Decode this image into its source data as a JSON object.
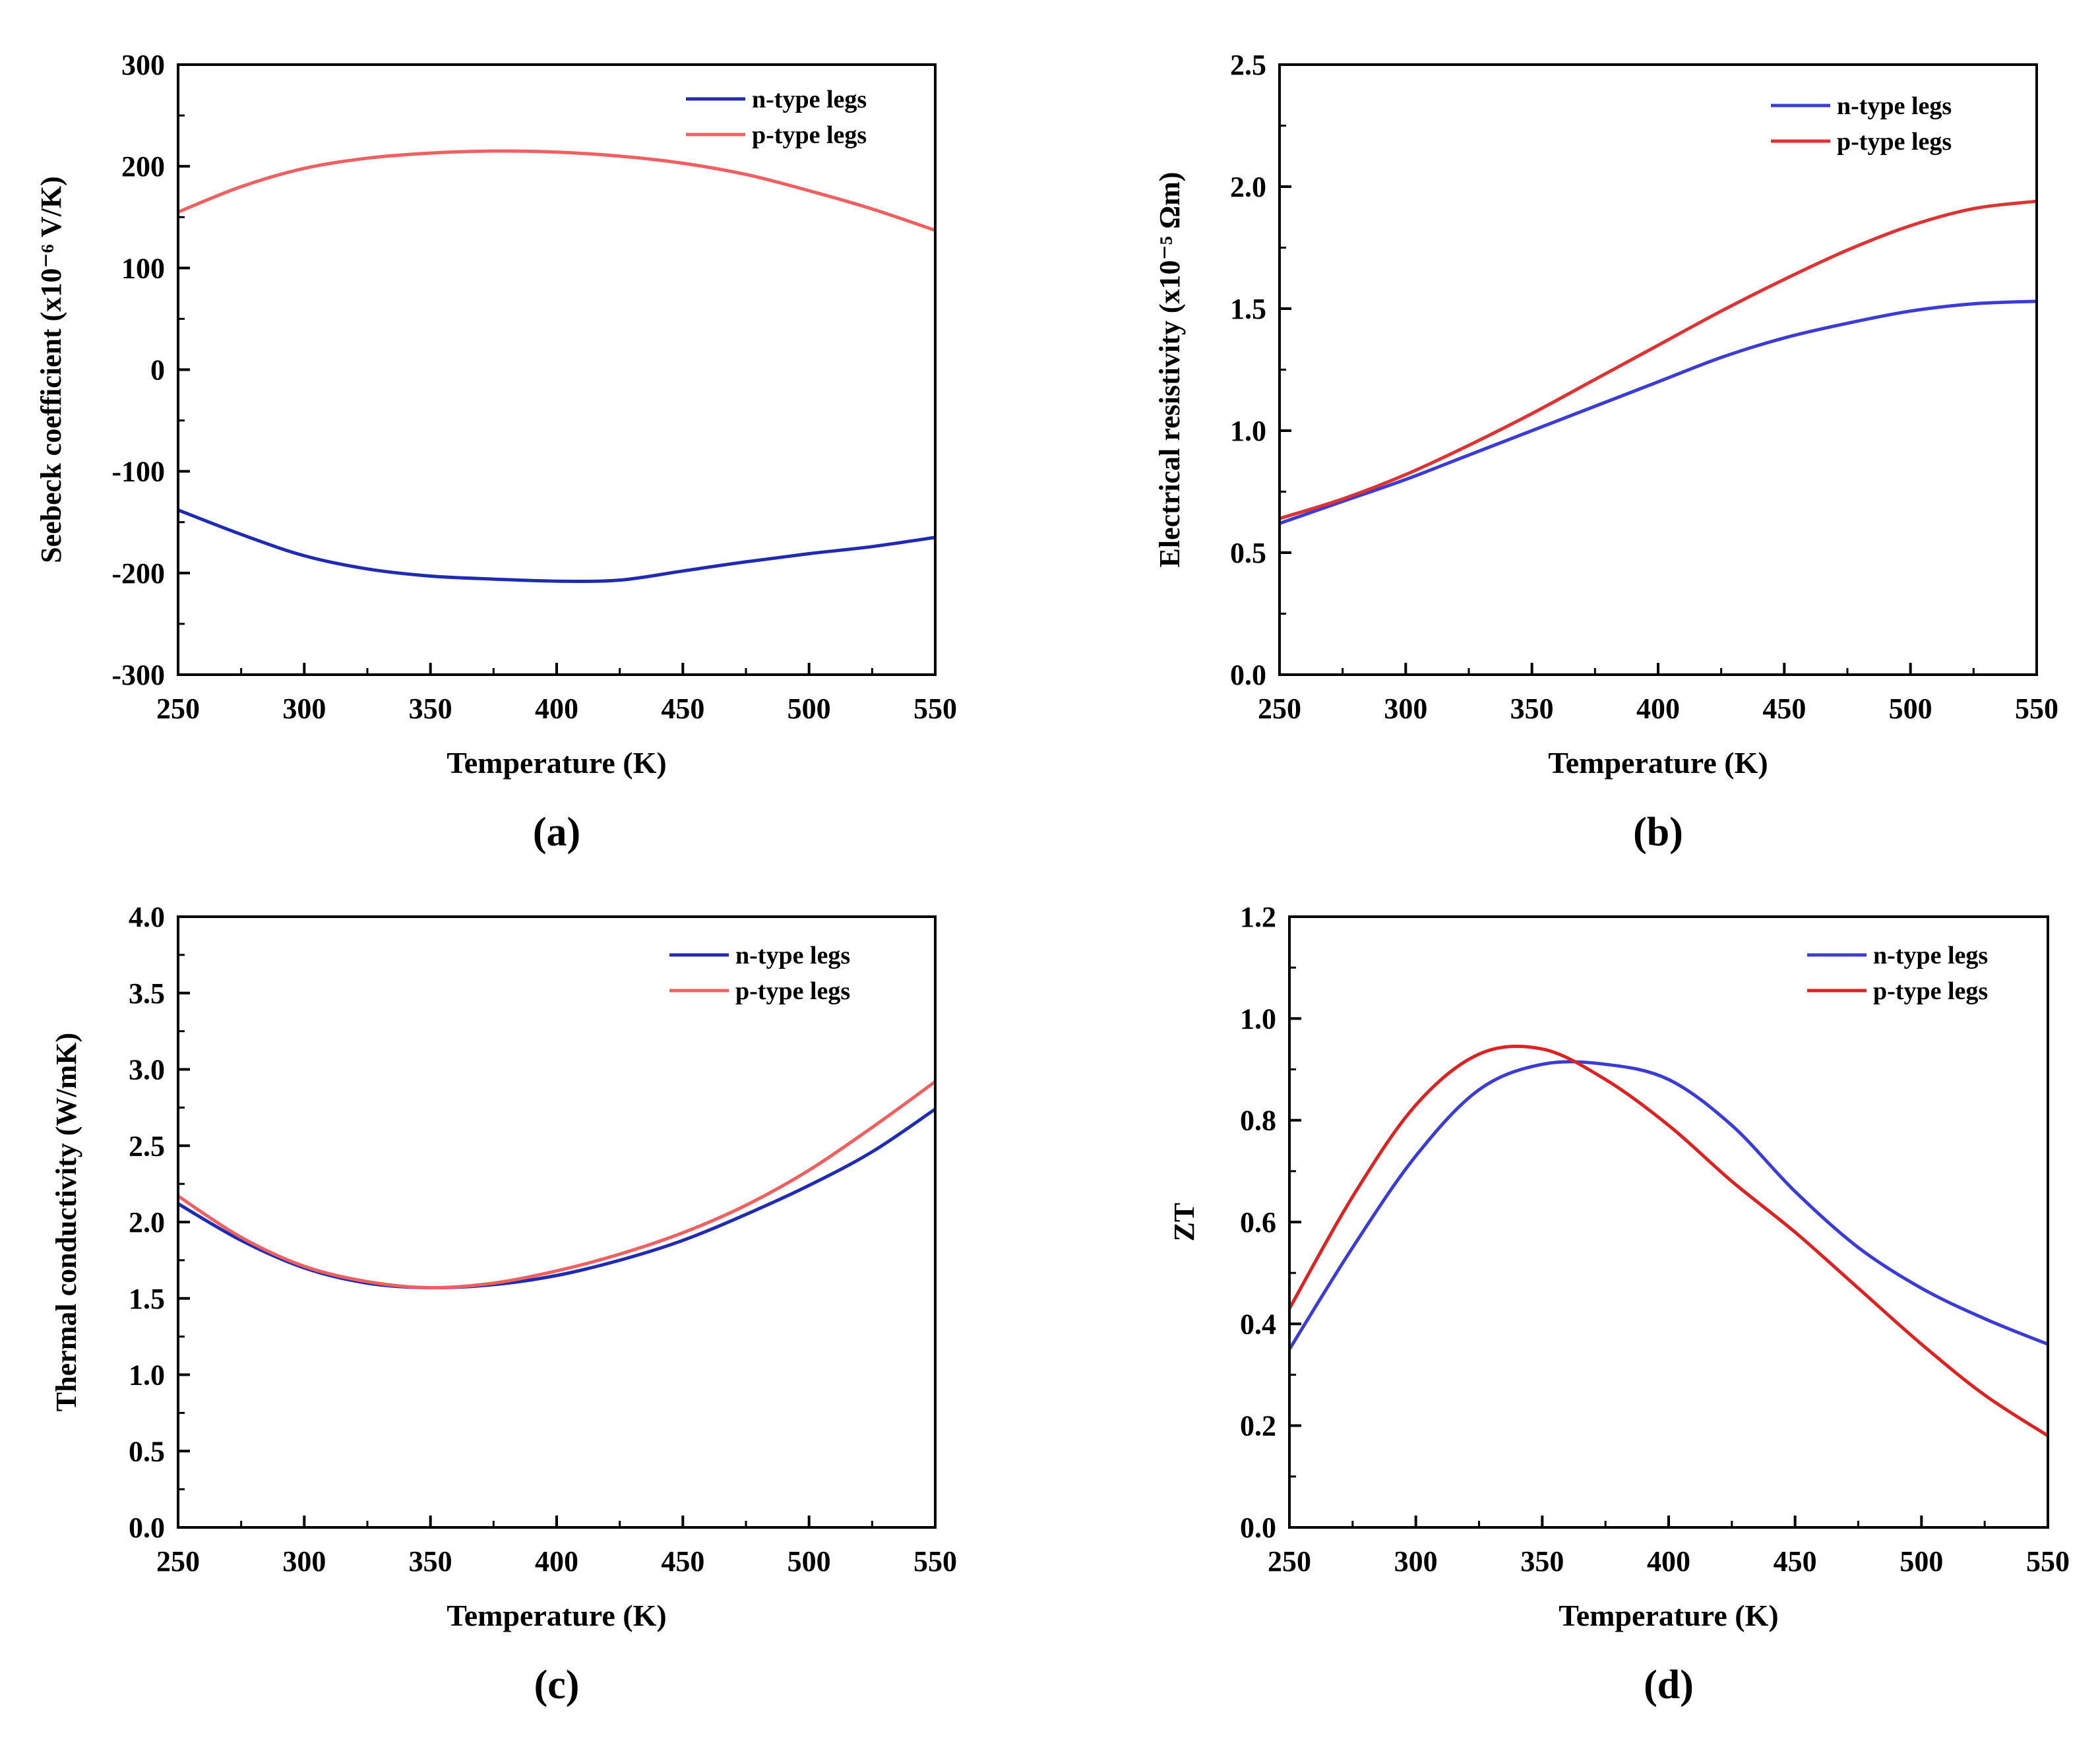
{
  "figure": {
    "panels_label": "Four-panel thermoelectric properties figure"
  },
  "chart_data": [
    {
      "id": "a",
      "type": "line",
      "panel_label": "(a)",
      "xlabel": "Temperature (K)",
      "ylabel": "Seebeck coefficient (x10⁻⁶ V/K)",
      "xlim": [
        250,
        550
      ],
      "ylim": [
        -300,
        300
      ],
      "xticks": [
        250,
        300,
        350,
        400,
        450,
        500,
        550
      ],
      "yticks": [
        -300,
        -200,
        -100,
        0,
        100,
        200,
        300
      ],
      "ytick_labels": [
        "-300",
        "-200",
        "-100",
        "0",
        "100",
        "200",
        "300"
      ],
      "legend_position": "top-right",
      "series": [
        {
          "name": "n-type legs",
          "color": "#1f2bb3",
          "x": [
            250,
            275,
            300,
            325,
            350,
            375,
            400,
            425,
            450,
            475,
            500,
            525,
            550
          ],
          "y": [
            -138,
            -162,
            -183,
            -196,
            -203,
            -206,
            -208,
            -207,
            -198,
            -189,
            -181,
            -174,
            -165
          ]
        },
        {
          "name": "p-type legs",
          "color": "#f06060",
          "x": [
            250,
            275,
            300,
            325,
            350,
            375,
            400,
            425,
            450,
            475,
            500,
            525,
            550
          ],
          "y": [
            155,
            180,
            198,
            208,
            213,
            215,
            214,
            210,
            203,
            192,
            176,
            158,
            137
          ]
        }
      ]
    },
    {
      "id": "b",
      "type": "line",
      "panel_label": "(b)",
      "xlabel": "Temperature (K)",
      "ylabel": "Electrical resistivity (x10⁻⁵ Ωm)",
      "xlim": [
        250,
        550
      ],
      "ylim": [
        0,
        2.5
      ],
      "xticks": [
        250,
        300,
        350,
        400,
        450,
        500,
        550
      ],
      "yticks": [
        0,
        0.5,
        1.0,
        1.5,
        2.0,
        2.5
      ],
      "ytick_labels": [
        "0.0",
        "0.5",
        "1.0",
        "1.5",
        "2.0",
        "2.5"
      ],
      "legend_position": "top-right",
      "series": [
        {
          "name": "n-type legs",
          "color": "#3b3bd6",
          "x": [
            250,
            275,
            300,
            325,
            350,
            375,
            400,
            425,
            450,
            475,
            500,
            525,
            550
          ],
          "y": [
            0.62,
            0.71,
            0.8,
            0.9,
            1.0,
            1.1,
            1.2,
            1.3,
            1.38,
            1.44,
            1.49,
            1.52,
            1.53
          ]
        },
        {
          "name": "p-type legs",
          "color": "#dd3333",
          "x": [
            250,
            275,
            300,
            325,
            350,
            375,
            400,
            425,
            450,
            475,
            500,
            525,
            550
          ],
          "y": [
            0.64,
            0.72,
            0.82,
            0.94,
            1.07,
            1.21,
            1.35,
            1.49,
            1.62,
            1.74,
            1.84,
            1.91,
            1.94
          ]
        }
      ]
    },
    {
      "id": "c",
      "type": "line",
      "panel_label": "(c)",
      "xlabel": "Temperature (K)",
      "ylabel": "Thermal conductivity (W/mK)",
      "xlim": [
        250,
        550
      ],
      "ylim": [
        0,
        4.0
      ],
      "xticks": [
        250,
        300,
        350,
        400,
        450,
        500,
        550
      ],
      "yticks": [
        0,
        0.5,
        1.0,
        1.5,
        2.0,
        2.5,
        3.0,
        3.5,
        4.0
      ],
      "ytick_labels": [
        "0.0",
        "0.5",
        "1.0",
        "1.5",
        "2.0",
        "2.5",
        "3.0",
        "3.5",
        "4.0"
      ],
      "legend_position": "top-right",
      "series": [
        {
          "name": "n-type legs",
          "color": "#1f2bb3",
          "x": [
            250,
            275,
            300,
            325,
            350,
            375,
            400,
            425,
            450,
            475,
            500,
            525,
            550
          ],
          "y": [
            2.12,
            1.88,
            1.7,
            1.6,
            1.57,
            1.59,
            1.65,
            1.75,
            1.88,
            2.05,
            2.24,
            2.46,
            2.74
          ]
        },
        {
          "name": "p-type legs",
          "color": "#f06060",
          "x": [
            250,
            275,
            300,
            325,
            350,
            375,
            400,
            425,
            450,
            475,
            500,
            525,
            550
          ],
          "y": [
            2.17,
            1.9,
            1.71,
            1.61,
            1.57,
            1.6,
            1.68,
            1.79,
            1.93,
            2.11,
            2.34,
            2.62,
            2.92
          ]
        }
      ]
    },
    {
      "id": "d",
      "type": "line",
      "panel_label": "(d)",
      "xlabel": "Temperature (K)",
      "ylabel": "ZT",
      "xlim": [
        250,
        550
      ],
      "ylim": [
        0,
        1.2
      ],
      "xticks": [
        250,
        300,
        350,
        400,
        450,
        500,
        550
      ],
      "yticks": [
        0,
        0.2,
        0.4,
        0.6,
        0.8,
        1.0,
        1.2
      ],
      "ytick_labels": [
        "0.0",
        "0.2",
        "0.4",
        "0.6",
        "0.8",
        "1.0",
        "1.2"
      ],
      "legend_position": "top-right",
      "series": [
        {
          "name": "n-type legs",
          "color": "#3b3bd6",
          "x": [
            250,
            275,
            300,
            325,
            350,
            375,
            400,
            425,
            450,
            475,
            500,
            525,
            550
          ],
          "y": [
            0.35,
            0.55,
            0.73,
            0.86,
            0.91,
            0.91,
            0.88,
            0.79,
            0.66,
            0.55,
            0.47,
            0.41,
            0.36
          ]
        },
        {
          "name": "p-type legs",
          "color": "#dd2222",
          "x": [
            250,
            275,
            300,
            325,
            350,
            375,
            400,
            425,
            450,
            475,
            500,
            525,
            550
          ],
          "y": [
            0.43,
            0.65,
            0.83,
            0.93,
            0.94,
            0.88,
            0.79,
            0.68,
            0.58,
            0.47,
            0.36,
            0.26,
            0.18
          ]
        }
      ]
    }
  ]
}
